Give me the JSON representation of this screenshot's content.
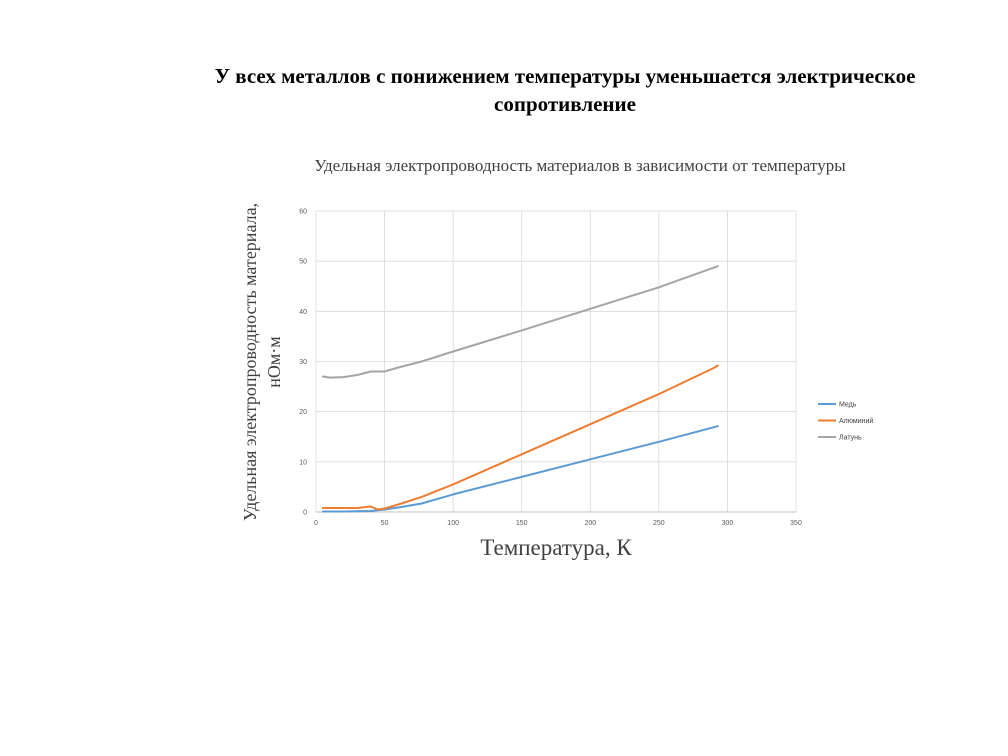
{
  "slide": {
    "title": "У всех металлов с понижением температуры уменьшается электрическое сопротивление"
  },
  "chart_data": {
    "type": "line",
    "title": "Удельная электропроводность материалов в зависимости от температуры",
    "xlabel": "Температура, К",
    "ylabel": "Удельная электропроводность материала, нОм·м",
    "xlim": [
      0,
      350
    ],
    "ylim": [
      0,
      60
    ],
    "x_ticks": [
      0,
      50,
      100,
      150,
      200,
      250,
      300,
      350
    ],
    "y_ticks": [
      0,
      10,
      20,
      30,
      40,
      50,
      60
    ],
    "grid": true,
    "legend_position": "right",
    "series": [
      {
        "name": "Медь",
        "color": "#5B9BD5",
        "points": [
          [
            5,
            0.1
          ],
          [
            20,
            0.1
          ],
          [
            40,
            0.2
          ],
          [
            50,
            0.5
          ],
          [
            60,
            0.9
          ],
          [
            77,
            1.7
          ],
          [
            100,
            3.5
          ],
          [
            150,
            7.0
          ],
          [
            200,
            10.5
          ],
          [
            250,
            14.0
          ],
          [
            293,
            17.1
          ]
        ]
      },
      {
        "name": "Алюминий",
        "color": "#ED7D31",
        "points": [
          [
            5,
            0.8
          ],
          [
            30,
            0.8
          ],
          [
            40,
            1.1
          ],
          [
            45,
            0.5
          ],
          [
            50,
            0.7
          ],
          [
            60,
            1.5
          ],
          [
            77,
            3.0
          ],
          [
            100,
            5.5
          ],
          [
            150,
            11.5
          ],
          [
            200,
            17.5
          ],
          [
            250,
            23.5
          ],
          [
            290,
            28.7
          ],
          [
            293,
            29.2
          ]
        ]
      },
      {
        "name": "Латунь",
        "color": "#A5A5A5",
        "points": [
          [
            5,
            27.0
          ],
          [
            10,
            26.8
          ],
          [
            20,
            26.9
          ],
          [
            30,
            27.3
          ],
          [
            40,
            28.0
          ],
          [
            50,
            28.0
          ],
          [
            60,
            28.8
          ],
          [
            77,
            30.0
          ],
          [
            100,
            32.0
          ],
          [
            150,
            36.2
          ],
          [
            200,
            40.5
          ],
          [
            250,
            44.8
          ],
          [
            293,
            49.0
          ]
        ]
      }
    ]
  }
}
